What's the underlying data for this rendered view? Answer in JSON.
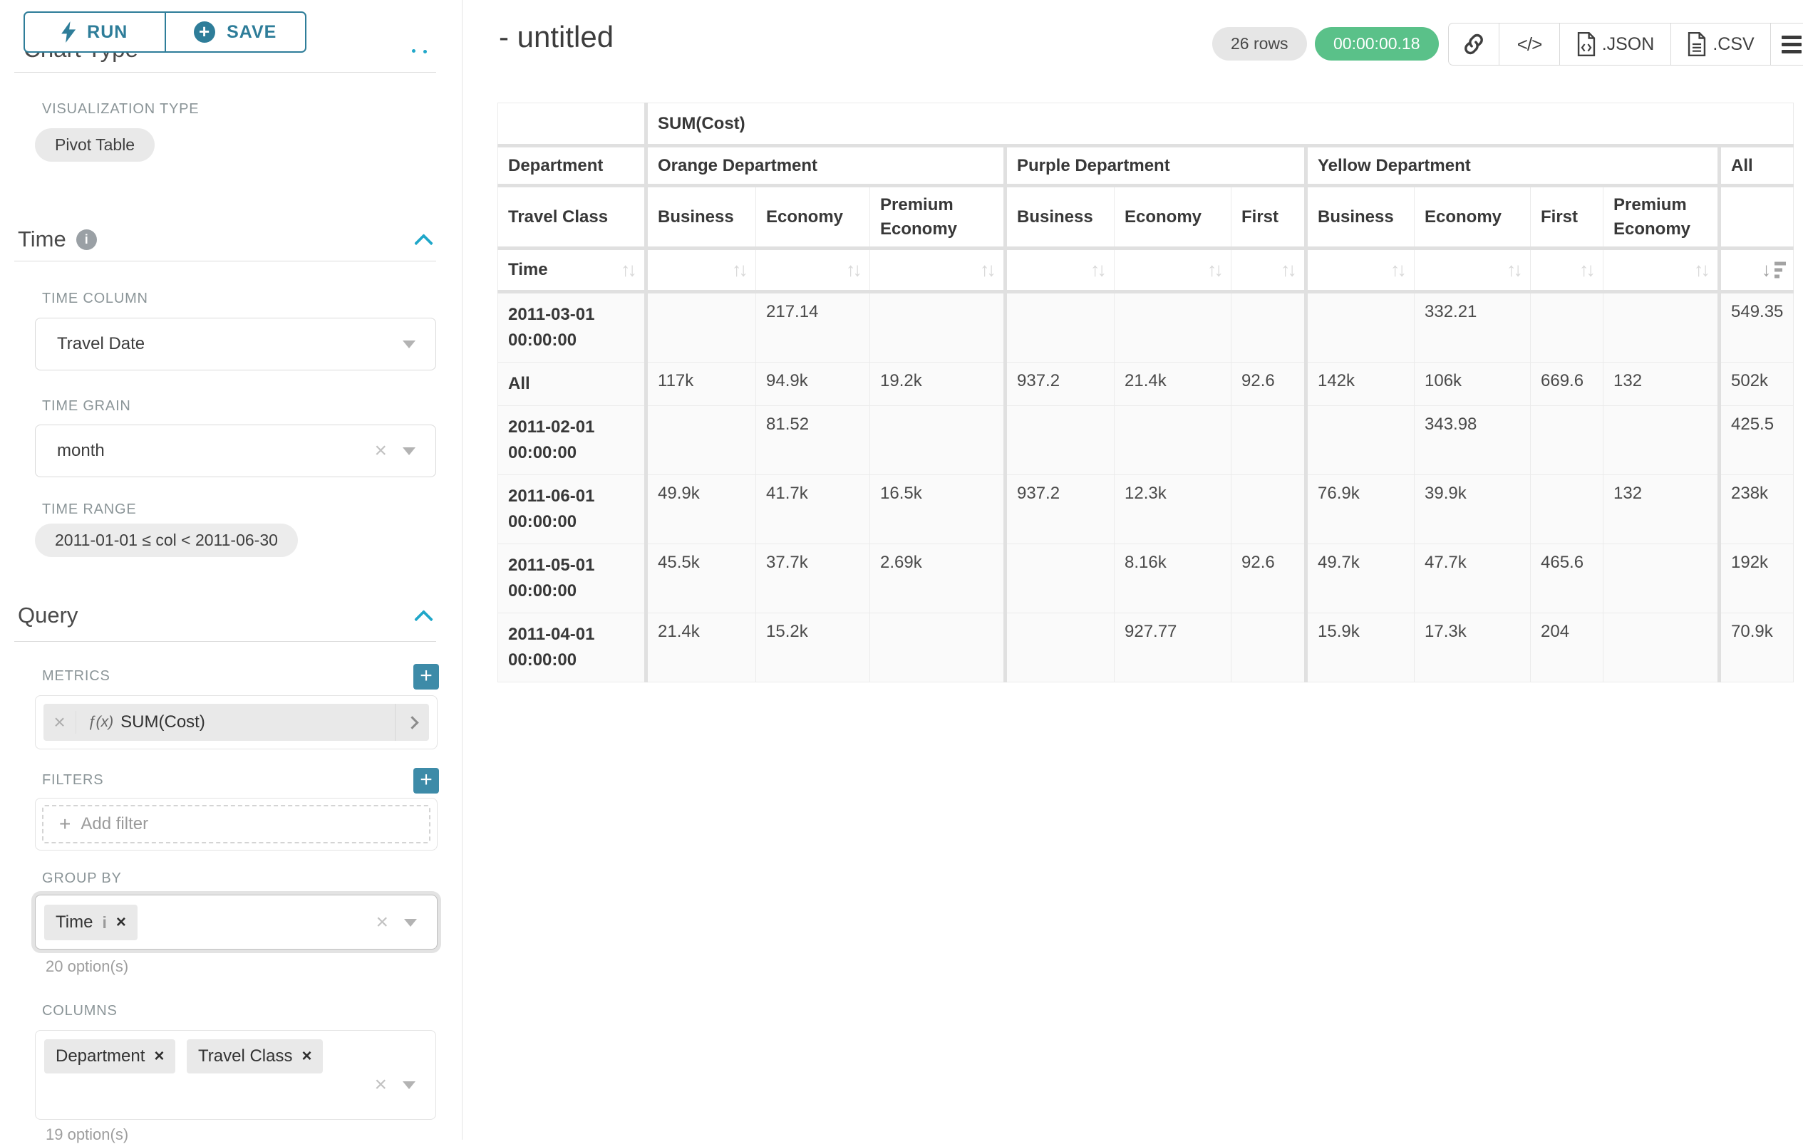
{
  "colors": {
    "accent_teal": "#2e7d99",
    "accent_blue": "#20a7c9",
    "success_green": "#5ac189",
    "label_gray": "#8b9598"
  },
  "sidebar": {
    "run_label": "RUN",
    "save_label": "SAVE",
    "scrolled_section_title": "Chart Type",
    "visualization_type": {
      "label": "VISUALIZATION TYPE",
      "value": "Pivot Table"
    },
    "time_section": {
      "title": "Time",
      "time_column": {
        "label": "TIME COLUMN",
        "value": "Travel Date"
      },
      "time_grain": {
        "label": "TIME GRAIN",
        "value": "month"
      },
      "time_range": {
        "label": "TIME RANGE",
        "value": "2011-01-01 ≤ col < 2011-06-30"
      }
    },
    "query_section": {
      "title": "Query",
      "metrics": {
        "label": "METRICS",
        "items": [
          {
            "prefix": "ƒ(x)",
            "name": "SUM(Cost)"
          }
        ]
      },
      "filters": {
        "label": "FILTERS",
        "placeholder": "Add filter"
      },
      "group_by": {
        "label": "GROUP BY",
        "tags": [
          "Time"
        ],
        "hint": "20 option(s)"
      },
      "columns": {
        "label": "COLUMNS",
        "tags": [
          "Department",
          "Travel Class"
        ],
        "hint": "19 option(s)"
      }
    }
  },
  "header": {
    "title": "- untitled",
    "row_count": "26 rows",
    "query_time": "00:00:00.18",
    "export_json_label": ".JSON",
    "export_csv_label": ".CSV"
  },
  "pivot": {
    "metric_header": "SUM(Cost)",
    "dept_label": "Department",
    "class_label": "Travel Class",
    "time_label": "Time",
    "groups": [
      {
        "label": "Orange Department",
        "cols": [
          "Business",
          "Economy",
          "Premium Economy"
        ]
      },
      {
        "label": "Purple Department",
        "cols": [
          "Business",
          "Economy",
          "First"
        ]
      },
      {
        "label": "Yellow Department",
        "cols": [
          "Business",
          "Economy",
          "First",
          "Premium Economy"
        ]
      },
      {
        "label": "All",
        "cols": [
          ""
        ]
      }
    ],
    "rows": [
      {
        "label": "2011-03-01 00:00:00",
        "values": [
          "",
          "217.14",
          "",
          "",
          "",
          "",
          "",
          "332.21",
          "",
          "",
          "549.35"
        ]
      },
      {
        "label": "All",
        "values": [
          "117k",
          "94.9k",
          "19.2k",
          "937.2",
          "21.4k",
          "92.6",
          "142k",
          "106k",
          "669.6",
          "132",
          "502k"
        ]
      },
      {
        "label": "2011-02-01 00:00:00",
        "values": [
          "",
          "81.52",
          "",
          "",
          "",
          "",
          "",
          "343.98",
          "",
          "",
          "425.5"
        ]
      },
      {
        "label": "2011-06-01 00:00:00",
        "values": [
          "49.9k",
          "41.7k",
          "16.5k",
          "937.2",
          "12.3k",
          "",
          "76.9k",
          "39.9k",
          "",
          "132",
          "238k"
        ]
      },
      {
        "label": "2011-05-01 00:00:00",
        "values": [
          "45.5k",
          "37.7k",
          "2.69k",
          "",
          "8.16k",
          "92.6",
          "49.7k",
          "47.7k",
          "465.6",
          "",
          "192k"
        ]
      },
      {
        "label": "2011-04-01 00:00:00",
        "values": [
          "21.4k",
          "15.2k",
          "",
          "",
          "927.77",
          "",
          "15.9k",
          "17.3k",
          "204",
          "",
          "70.9k"
        ]
      }
    ]
  }
}
